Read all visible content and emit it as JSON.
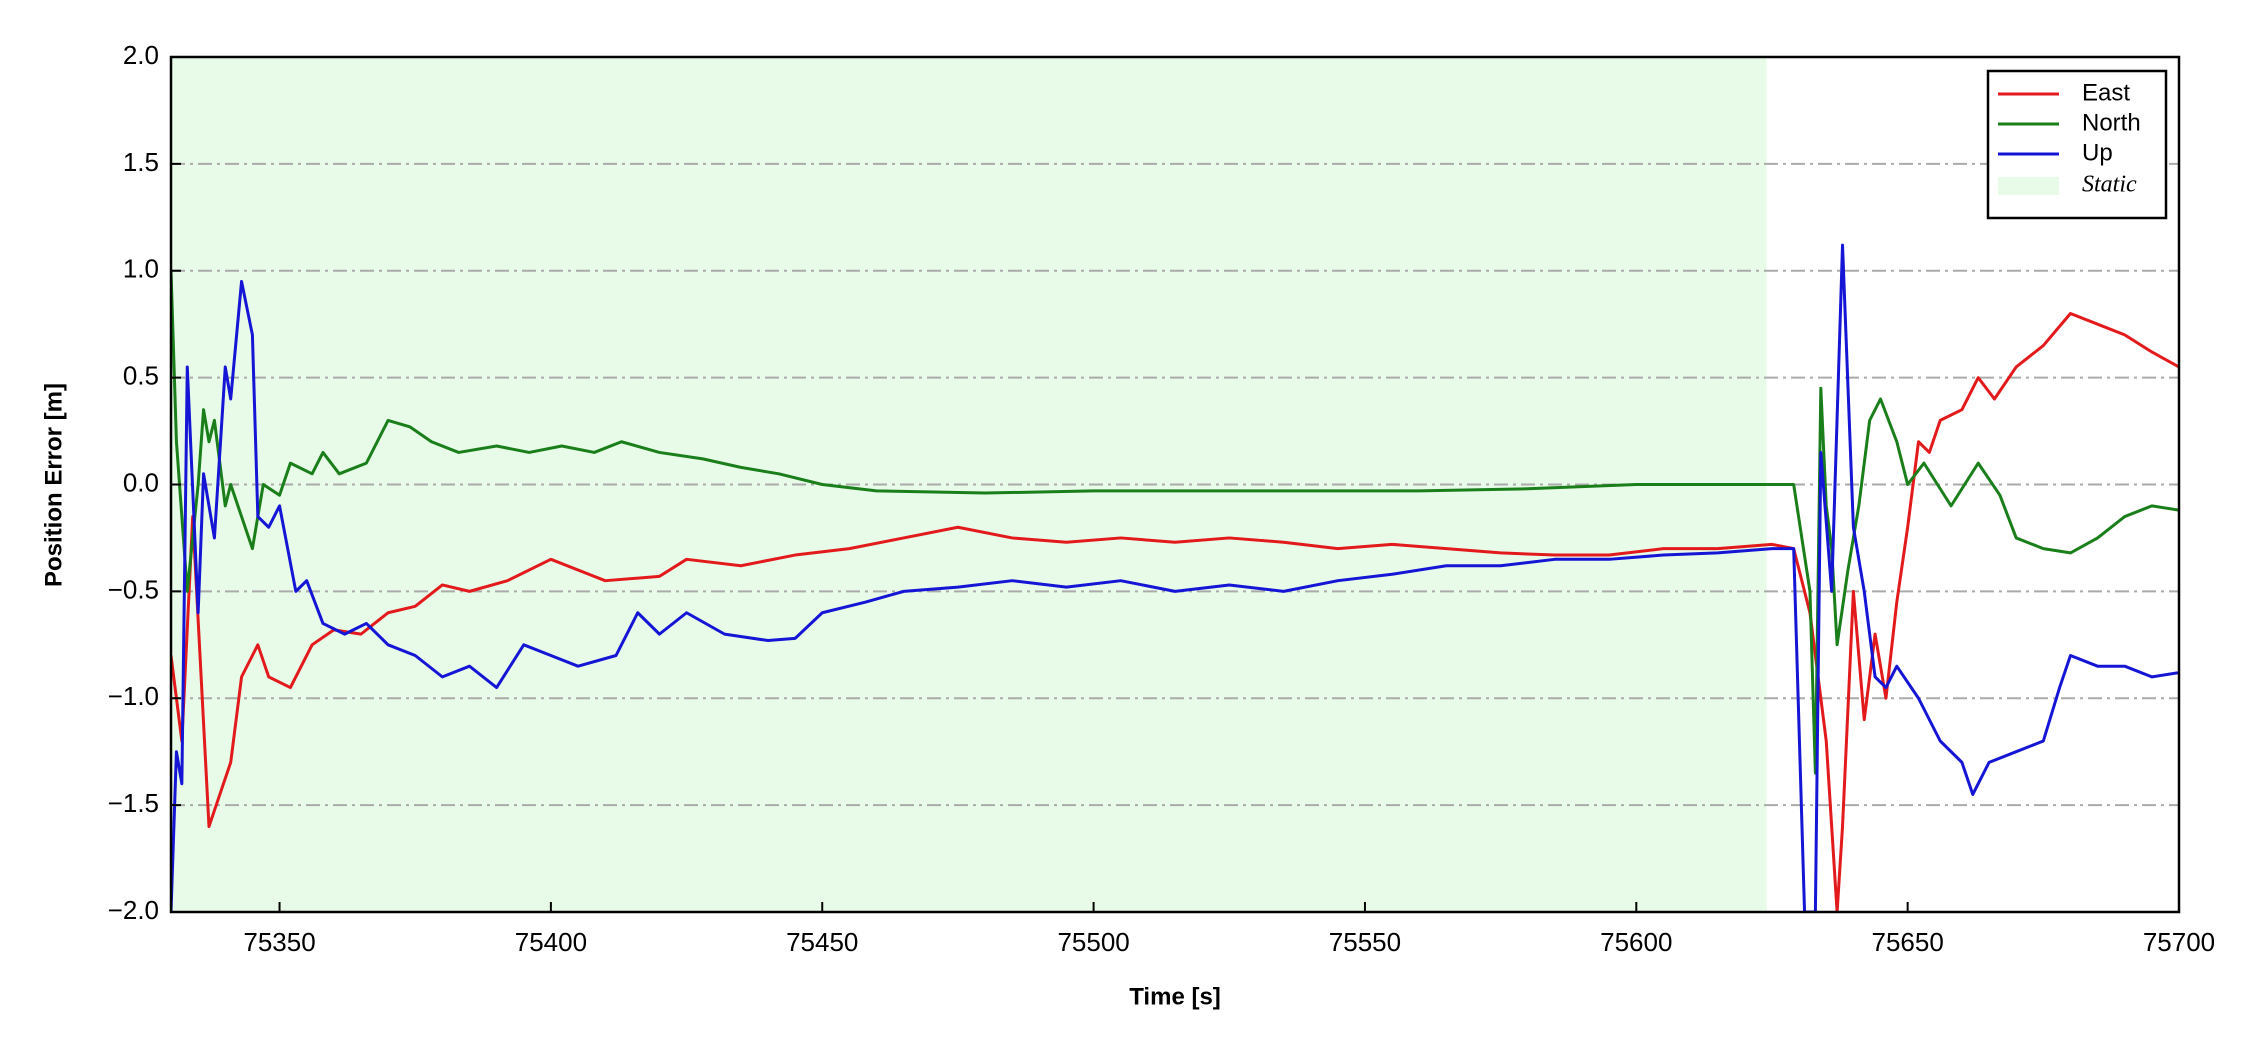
{
  "chart_data": {
    "type": "line",
    "xlabel": "Time [s]",
    "ylabel": "Position Error [m]",
    "xlim": [
      75330,
      75700
    ],
    "xticks": [
      75350,
      75400,
      75450,
      75500,
      75550,
      75600,
      75650,
      75700
    ],
    "ylim": [
      -2.0,
      2.0
    ],
    "yticks": [
      {
        "value": -2.0,
        "label": "−2.0"
      },
      {
        "value": -1.5,
        "label": "−1.5"
      },
      {
        "value": -1.0,
        "label": "−1.0"
      },
      {
        "value": -0.5,
        "label": "−0.5"
      },
      {
        "value": 0.0,
        "label": "0.0"
      },
      {
        "value": 0.5,
        "label": "0.5"
      },
      {
        "value": 1.0,
        "label": "1.0"
      },
      {
        "value": 1.5,
        "label": "1.5"
      },
      {
        "value": 2.0,
        "label": "2.0"
      }
    ],
    "grid": true,
    "legend": "upper right",
    "shade": {
      "x": [
        75330,
        75624
      ],
      "color": "#e8fbe8",
      "label": "Static"
    },
    "series": [
      {
        "name": "East",
        "color": "#e31a1c",
        "x": [
          75330,
          75332,
          75334,
          75337,
          75339,
          75341,
          75343,
          75345,
          75346,
          75348,
          75352,
          75356,
          75360,
          75365,
          75370,
          75375,
          75380,
          75385,
          75392,
          75400,
          75405,
          75410,
          75420,
          75425,
          75435,
          75445,
          75455,
          75465,
          75475,
          75485,
          75495,
          75505,
          75515,
          75525,
          75535,
          75545,
          75555,
          75565,
          75575,
          75585,
          75595,
          75605,
          75615,
          75625,
          75629,
          75632,
          75635,
          75637,
          75638,
          75640,
          75642,
          75644,
          75646,
          75648,
          75650,
          75652,
          75654,
          75656,
          75660,
          75663,
          75666,
          75670,
          75675,
          75680,
          75685,
          75690,
          75695,
          75700
        ],
        "values": [
          -0.8,
          -1.2,
          -0.15,
          -1.6,
          -1.45,
          -1.3,
          -0.9,
          -0.8,
          -0.75,
          -0.9,
          -0.95,
          -0.75,
          -0.68,
          -0.7,
          -0.6,
          -0.57,
          -0.47,
          -0.5,
          -0.45,
          -0.35,
          -0.4,
          -0.45,
          -0.43,
          -0.35,
          -0.38,
          -0.33,
          -0.3,
          -0.25,
          -0.2,
          -0.25,
          -0.27,
          -0.25,
          -0.27,
          -0.25,
          -0.27,
          -0.3,
          -0.28,
          -0.3,
          -0.32,
          -0.33,
          -0.33,
          -0.3,
          -0.3,
          -0.28,
          -0.3,
          -0.6,
          -1.2,
          -2.0,
          -1.6,
          -0.5,
          -1.1,
          -0.7,
          -1.0,
          -0.55,
          -0.2,
          0.2,
          0.15,
          0.3,
          0.35,
          0.5,
          0.4,
          0.55,
          0.65,
          0.8,
          0.75,
          0.7,
          0.62,
          0.55
        ]
      },
      {
        "name": "North",
        "color": "#1a7f1a",
        "x": [
          75330,
          75331,
          75333,
          75335,
          75336,
          75337,
          75338,
          75340,
          75341,
          75343,
          75345,
          75347,
          75350,
          75352,
          75356,
          75358,
          75361,
          75366,
          75370,
          75374,
          75378,
          75383,
          75390,
          75396,
          75402,
          75408,
          75413,
          75420,
          75428,
          75435,
          75442,
          75450,
          75460,
          75480,
          75500,
          75530,
          75560,
          75580,
          75600,
          75625,
          75629,
          75632,
          75633,
          75634,
          75635,
          75636,
          75637,
          75639,
          75641,
          75643,
          75645,
          75648,
          75650,
          75653,
          75658,
          75663,
          75667,
          75670,
          75675,
          75680,
          75685,
          75690,
          75695,
          75700
        ],
        "values": [
          1.0,
          0.2,
          -0.5,
          0.0,
          0.35,
          0.2,
          0.3,
          -0.1,
          0.0,
          -0.15,
          -0.3,
          0.0,
          -0.05,
          0.1,
          0.05,
          0.15,
          0.05,
          0.1,
          0.3,
          0.27,
          0.2,
          0.15,
          0.18,
          0.15,
          0.18,
          0.15,
          0.2,
          0.15,
          0.12,
          0.08,
          0.05,
          0.0,
          -0.03,
          -0.04,
          -0.03,
          -0.03,
          -0.03,
          -0.02,
          0.0,
          0.0,
          0.0,
          -0.5,
          -1.35,
          0.45,
          -0.1,
          -0.3,
          -0.75,
          -0.4,
          -0.1,
          0.3,
          0.4,
          0.2,
          0.0,
          0.1,
          -0.1,
          0.1,
          -0.05,
          -0.25,
          -0.3,
          -0.32,
          -0.25,
          -0.15,
          -0.1,
          -0.12
        ]
      },
      {
        "name": "Up",
        "color": "#1515d6",
        "x": [
          75330,
          75331,
          75332,
          75333,
          75335,
          75336,
          75338,
          75340,
          75341,
          75343,
          75345,
          75346,
          75348,
          75350,
          75353,
          75355,
          75358,
          75362,
          75366,
          75370,
          75375,
          75380,
          75385,
          75390,
          75395,
          75400,
          75405,
          75412,
          75416,
          75420,
          75425,
          75432,
          75440,
          75445,
          75450,
          75458,
          75465,
          75475,
          75485,
          75495,
          75505,
          75515,
          75525,
          75535,
          75545,
          75555,
          75565,
          75575,
          75585,
          75595,
          75605,
          75615,
          75625,
          75629,
          75631,
          75633,
          75634,
          75636,
          75638,
          75640,
          75642,
          75644,
          75646,
          75648,
          75652,
          75656,
          75660,
          75662,
          75665,
          75670,
          75675,
          75678,
          75680,
          75685,
          75690,
          75695,
          75700
        ],
        "values": [
          -2.0,
          -1.25,
          -1.4,
          0.55,
          -0.6,
          0.05,
          -0.25,
          0.55,
          0.4,
          0.95,
          0.7,
          -0.15,
          -0.2,
          -0.1,
          -0.5,
          -0.45,
          -0.65,
          -0.7,
          -0.65,
          -0.75,
          -0.8,
          -0.9,
          -0.85,
          -0.95,
          -0.75,
          -0.8,
          -0.85,
          -0.8,
          -0.6,
          -0.7,
          -0.6,
          -0.7,
          -0.73,
          -0.72,
          -0.6,
          -0.55,
          -0.5,
          -0.48,
          -0.45,
          -0.48,
          -0.45,
          -0.5,
          -0.47,
          -0.5,
          -0.45,
          -0.42,
          -0.38,
          -0.38,
          -0.35,
          -0.35,
          -0.33,
          -0.32,
          -0.3,
          -0.3,
          -2.0,
          -2.0,
          0.15,
          -0.5,
          1.12,
          -0.2,
          -0.5,
          -0.9,
          -0.95,
          -0.85,
          -1.0,
          -1.2,
          -1.3,
          -1.45,
          -1.3,
          -1.25,
          -1.2,
          -0.95,
          -0.8,
          -0.85,
          -0.85,
          -0.9,
          -0.88
        ]
      }
    ]
  }
}
